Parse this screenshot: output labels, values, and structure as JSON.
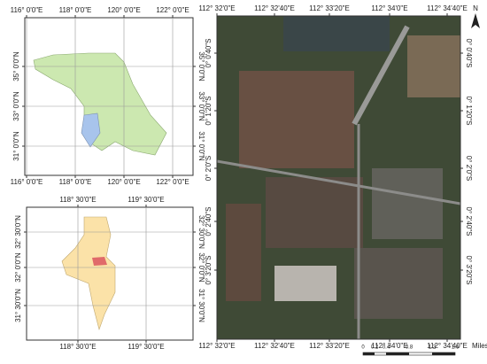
{
  "panels": [
    {
      "x_labels": [
        "116° 0'0\"E",
        "118° 0'0\"E",
        "120° 0'0\"E",
        "122° 0'0\"E"
      ],
      "y_labels": [
        "35° 0'0\"N",
        "33° 0'0\"N",
        "31° 0'0\"N"
      ]
    },
    {
      "x_labels": [
        "118° 30'0\"E",
        "119° 30'0\"E"
      ],
      "y_labels": [
        "32° 30'0\"N",
        "32° 0'0\"N",
        "31° 30'0\"N"
      ]
    },
    {
      "x_labels": [
        "112° 32'0\"E",
        "112° 32'40\"E",
        "112° 33'20\"E",
        "112° 34'0\"E",
        "112° 34'40\"E"
      ],
      "y_labels": [
        "0° 0'40\"S",
        "0° 1'20\"S",
        "0° 2'0\"S",
        "0° 2'40\"S",
        "0° 3'20\"S"
      ]
    }
  ],
  "north": "N",
  "scale_bar": {
    "ticks": [
      "0",
      "0.2",
      "0.4",
      "0.8",
      "1.2",
      "1.6"
    ],
    "unit": "Miles"
  }
}
